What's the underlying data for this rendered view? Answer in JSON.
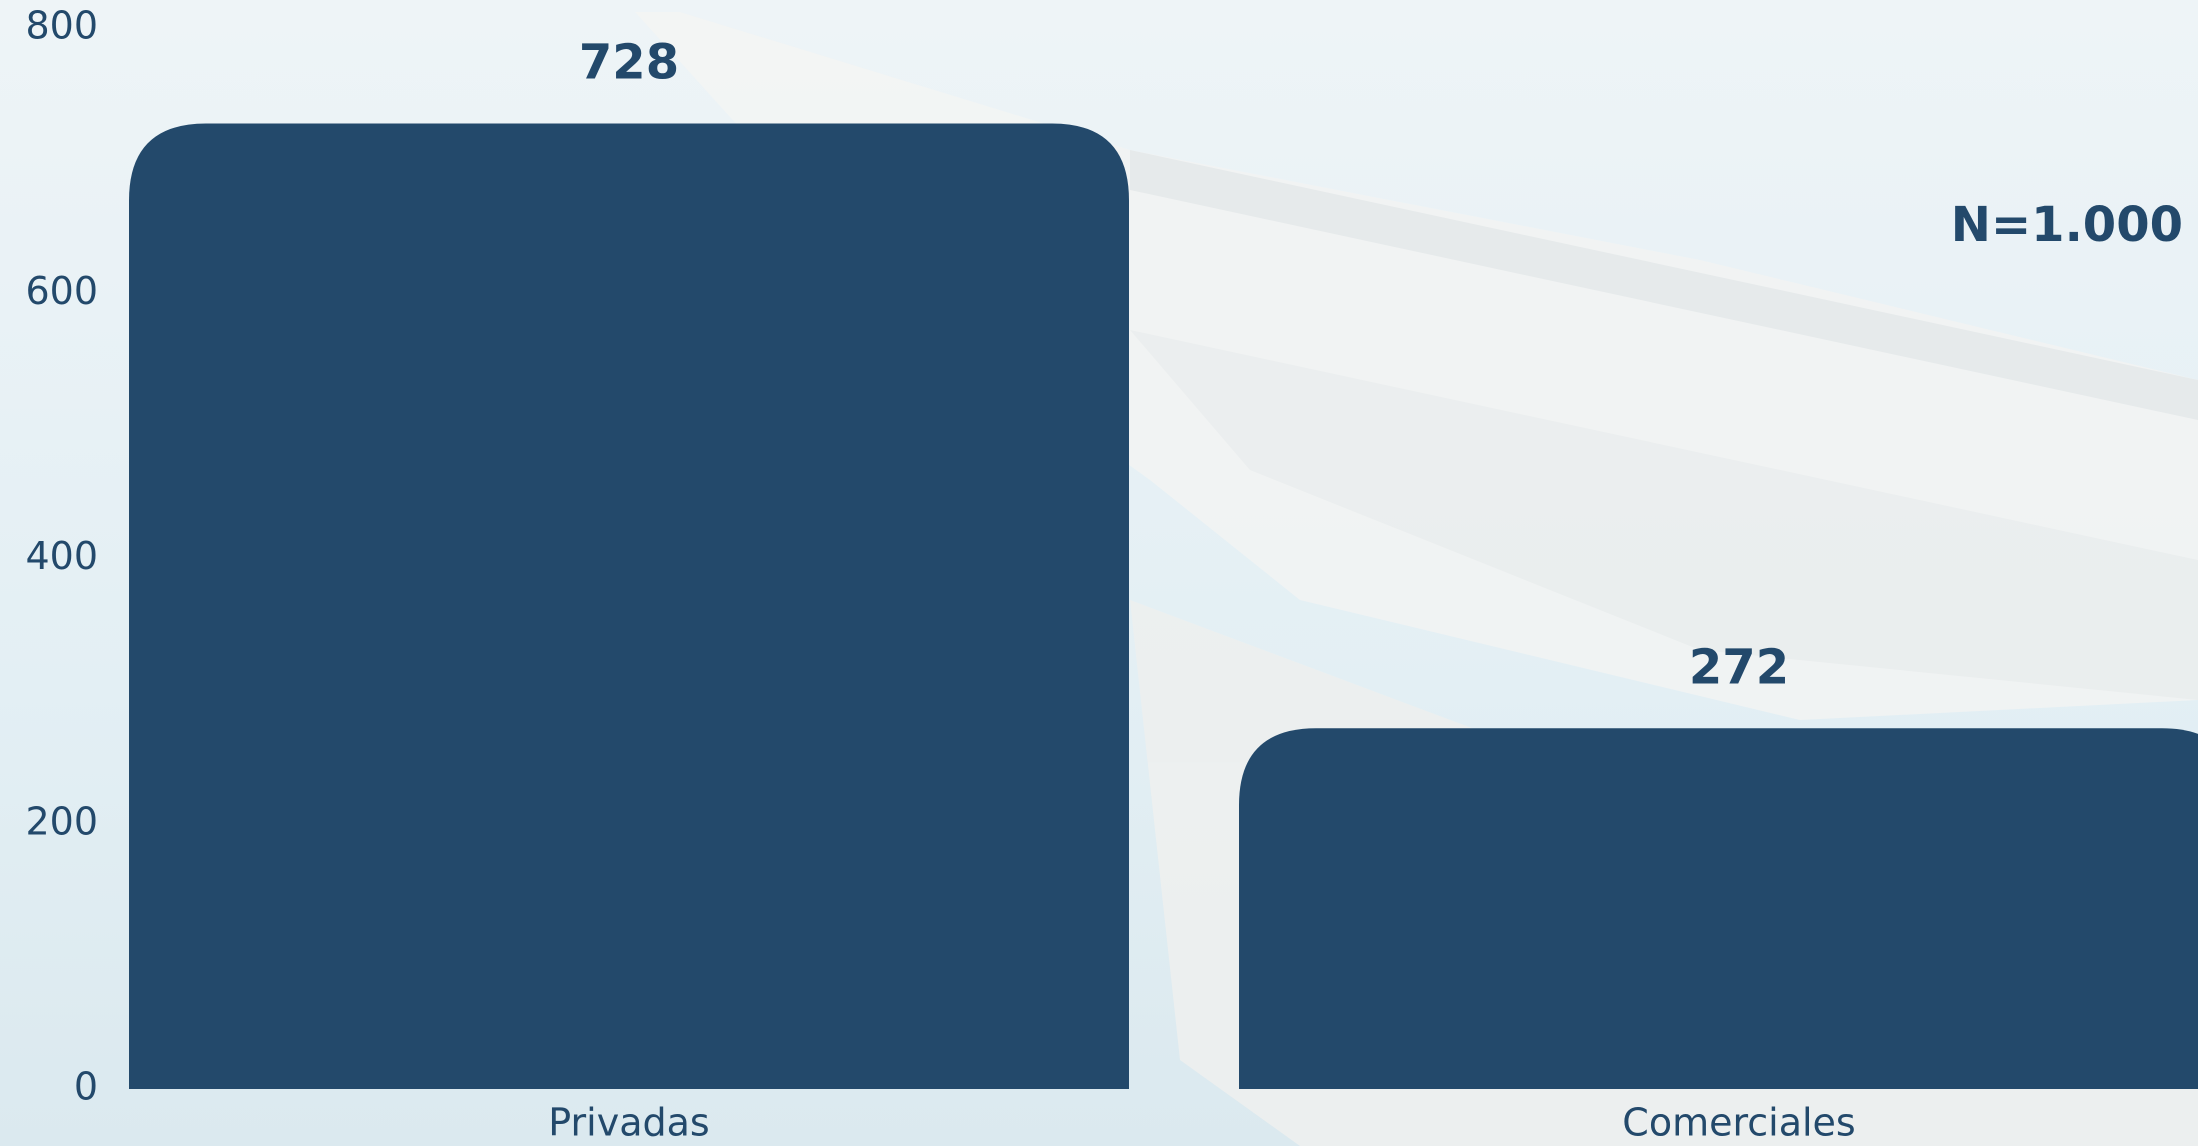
{
  "chart_data": {
    "type": "bar",
    "annotation": "N=1.000",
    "categories": [
      "Privadas",
      "Comerciales"
    ],
    "values": [
      728,
      272
    ],
    "color": "#23496b",
    "ylim": [
      0,
      800
    ],
    "yticks": [
      0,
      200,
      400,
      600,
      800
    ],
    "grid": false
  }
}
